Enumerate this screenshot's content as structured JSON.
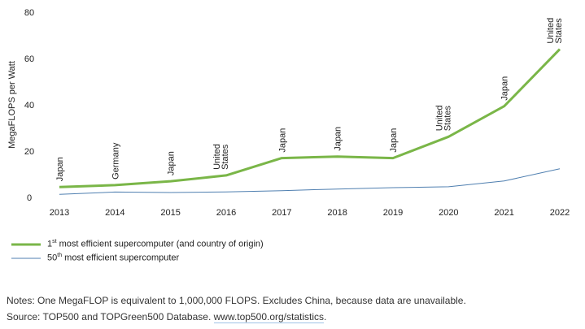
{
  "chart_data": {
    "type": "line",
    "x": [
      2013,
      2014,
      2015,
      2016,
      2017,
      2018,
      2019,
      2020,
      2021,
      2022
    ],
    "ylabel": "MegaFLOPS per Watt",
    "ylim": [
      0,
      80
    ],
    "yticks": [
      0,
      20,
      40,
      60,
      80
    ],
    "grid": false,
    "legend_position": "bottom-left",
    "series": [
      {
        "name_sup": "st",
        "name_prefix": "1",
        "name_suffix": " most efficient supercomputer (and country of origin)",
        "color": "#7ab648",
        "values": [
          4.5,
          5.3,
          7.0,
          9.5,
          17.0,
          17.6,
          17.0,
          26.2,
          39.4,
          64.0
        ],
        "countries": [
          "Japan",
          "Germany",
          "Japan",
          "United States",
          "Japan",
          "Japan",
          "Japan",
          "United States",
          "Japan",
          "United States"
        ]
      },
      {
        "name_prefix": "50",
        "name_sup": "th",
        "name_suffix": " most efficient supercomputer",
        "color": "#4f7fb0",
        "values": [
          1.3,
          2.3,
          2.1,
          2.4,
          2.9,
          3.6,
          4.2,
          4.6,
          7.1,
          12.4
        ]
      }
    ]
  },
  "notes": {
    "line1": "Notes: One MegaFLOP is equivalent to 1,000,000 FLOPS. Excludes China, because data are unavailable.",
    "line2_prefix": "Source: TOP500 and TOPGreen500 Database. ",
    "line2_link": "www.top500.org/statistics",
    "line2_suffix": "."
  }
}
